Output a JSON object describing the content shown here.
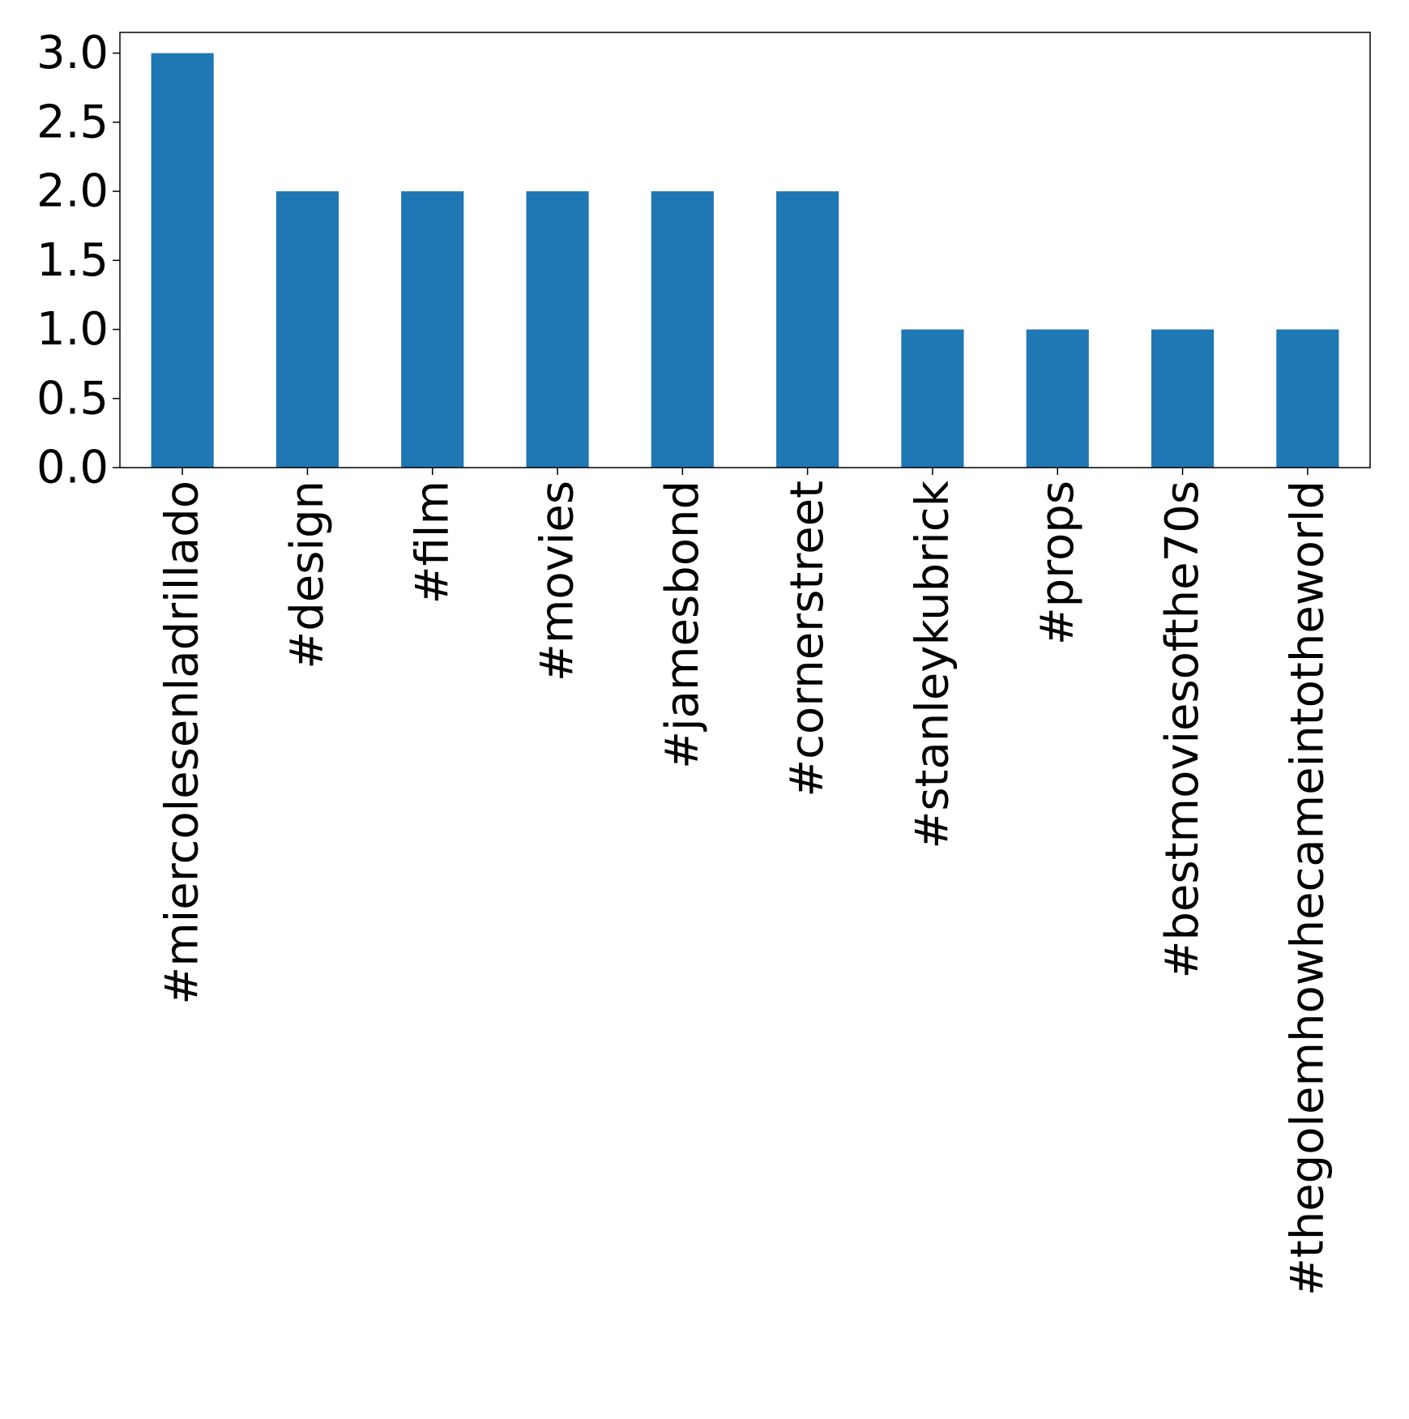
{
  "chart_data": {
    "type": "bar",
    "categories": [
      "#miercolesenladrillado",
      "#design",
      "#film",
      "#movies",
      "#jamesbond",
      "#cornerstreet",
      "#stanleykubrick",
      "#props",
      "#bestmoviesofthe70s",
      "#thegolemhowhecameintotheworld"
    ],
    "values": [
      3,
      2,
      2,
      2,
      2,
      2,
      1,
      1,
      1,
      1
    ],
    "ylim": [
      0,
      3.15
    ],
    "yticks": [
      0.0,
      0.5,
      1.0,
      1.5,
      2.0,
      2.5,
      3.0
    ],
    "ytick_labels": [
      "0.0",
      "0.5",
      "1.0",
      "1.5",
      "2.0",
      "2.5",
      "3.0"
    ],
    "bar_color": "#1f77b4",
    "grid": false,
    "legend": "none",
    "title": "",
    "xlabel": "",
    "ylabel": ""
  }
}
